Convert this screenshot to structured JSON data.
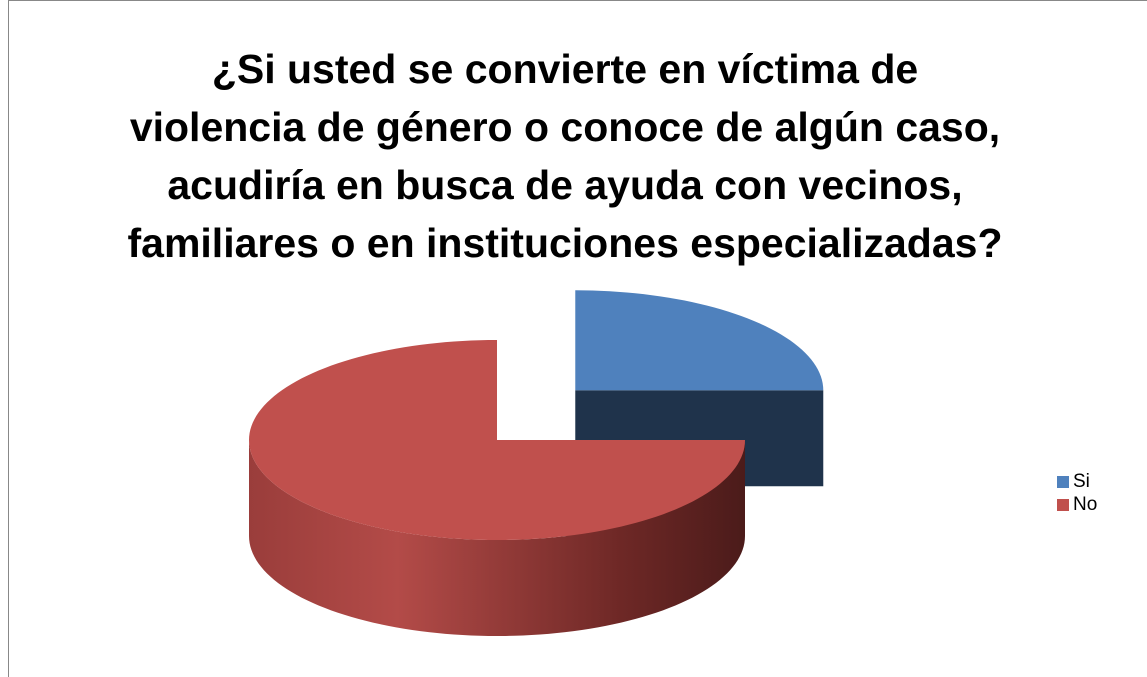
{
  "chart_data": {
    "type": "pie",
    "title": "¿Si usted se convierte en víctima de violencia de género o conoce de algún caso, acudiría en busca de ayuda con vecinos, familiares o en instituciones especializadas?",
    "categories": [
      "Si",
      "No"
    ],
    "values": [
      25,
      75
    ],
    "colors": [
      "#4f81bd",
      "#c0504d"
    ],
    "legend": "right"
  }
}
